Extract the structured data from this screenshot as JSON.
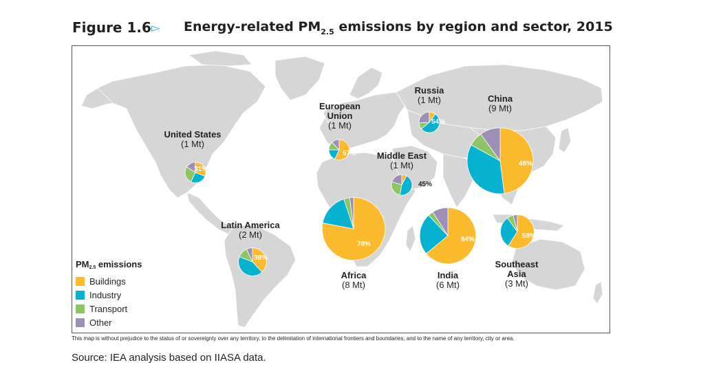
{
  "header": {
    "figure_label": "Figure 1.6",
    "arrow_icon": "triangle-right-icon",
    "title_pre": "Energy-related PM",
    "title_sub": "2.5",
    "title_post": " emissions by region and sector, 2015"
  },
  "footer": {
    "disclaimer": "This map is without prejudice to the status of or sovereignty over any territory, to the delimitation of international frontiers and boundaries, and to the name of any territory, city or area.",
    "source": "Source:  IEA analysis based on IIASA data."
  },
  "colors": {
    "Buildings": "#fbbb2d",
    "Industry": "#06b2d0",
    "Transport": "#8dc563",
    "Other": "#9d8fb8",
    "land": "#d6d6d6"
  },
  "chart_data": {
    "type": "pie",
    "title": "Energy-related PM2.5 emissions by region and sector, 2015",
    "legend": {
      "title_pre": "PM",
      "title_sub": "2.5",
      "title_post": " emissions",
      "placement": "bottom-left",
      "entries": [
        "Buildings",
        "Industry",
        "Transport",
        "Other"
      ]
    },
    "sectors": [
      "Buildings",
      "Industry",
      "Transport",
      "Other"
    ],
    "series": [
      {
        "region": "United States",
        "total": "(1 Mt)",
        "total_mt": 1,
        "values": [
          31,
          26,
          27,
          16
        ],
        "label": "31%"
      },
      {
        "region": "European Union",
        "total": "(1 Mt)",
        "total_mt": 1,
        "values": [
          57,
          18,
          13,
          12
        ],
        "label": "57%"
      },
      {
        "region": "Russia",
        "total": "(1 Mt)",
        "total_mt": 1,
        "values": [
          10,
          54,
          10,
          26
        ],
        "label": "54%"
      },
      {
        "region": "Middle East",
        "total": "(1 Mt)",
        "total_mt": 1,
        "values": [
          8,
          45,
          27,
          20
        ],
        "label": "45%"
      },
      {
        "region": "China",
        "total": "(9 Mt)",
        "total_mt": 9,
        "values": [
          48,
          35,
          7,
          10
        ],
        "label": "48%"
      },
      {
        "region": "Latin America",
        "total": "(2 Mt)",
        "total_mt": 2,
        "values": [
          38,
          43,
          12,
          7
        ],
        "label": "38%"
      },
      {
        "region": "Africa",
        "total": "(8 Mt)",
        "total_mt": 8,
        "values": [
          78,
          17,
          3,
          2
        ],
        "label": "78%"
      },
      {
        "region": "India",
        "total": "(6 Mt)",
        "total_mt": 6,
        "values": [
          64,
          24,
          3,
          9
        ],
        "label": "64%"
      },
      {
        "region": "Southeast Asia",
        "total": "(3 Mt)",
        "total_mt": 3,
        "values": [
          59,
          31,
          6,
          4
        ],
        "label": "59%"
      }
    ]
  }
}
